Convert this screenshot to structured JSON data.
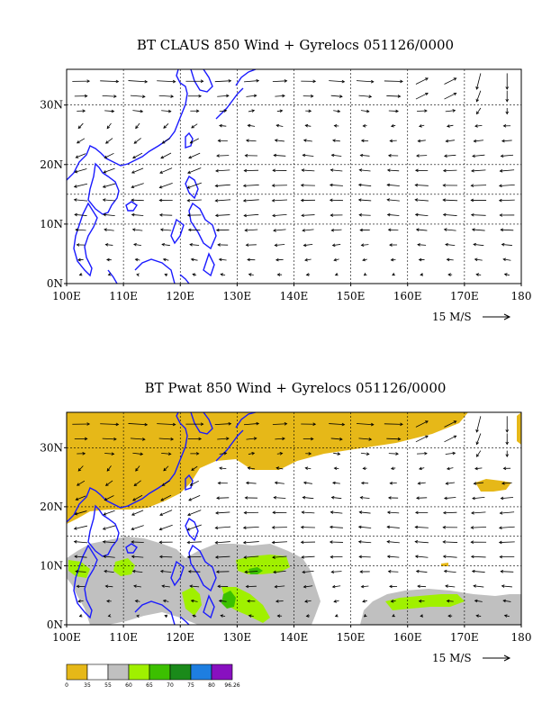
{
  "panels": [
    {
      "id": "claus",
      "title": "BT CLAUS 850 Wind + Gyrelocs 051126/0000",
      "shading": "none"
    },
    {
      "id": "pwat",
      "title": "BT Pwat 850 Wind + Gyrelocs 051126/0000",
      "shading": "pwat"
    }
  ],
  "axes": {
    "lon_labels": [
      "100E",
      "110E",
      "120E",
      "130E",
      "140E",
      "150E",
      "160E",
      "170E",
      "180"
    ],
    "lon_values": [
      100,
      110,
      120,
      130,
      140,
      150,
      160,
      170,
      180
    ],
    "lat_labels": [
      "0N",
      "10N",
      "20N",
      "30N"
    ],
    "lat_values": [
      0,
      10,
      20,
      30
    ],
    "lon_range": [
      100,
      180
    ],
    "lat_range": [
      0,
      36
    ],
    "reference_vector_label": "15 M/S"
  },
  "colorbar": {
    "labels": [
      "0",
      "35",
      "55",
      "60",
      "65",
      "70",
      "75",
      "80",
      "96.26"
    ],
    "colors": [
      "#e6b818",
      "#ffffff",
      "#c0c0c0",
      "#a0f000",
      "#3cc000",
      "#1a8a1a",
      "#1e7ee0",
      "#8810c0"
    ]
  },
  "colors": {
    "coast": "#1a1aff",
    "vector": "#000000",
    "grid": "#000000"
  }
}
